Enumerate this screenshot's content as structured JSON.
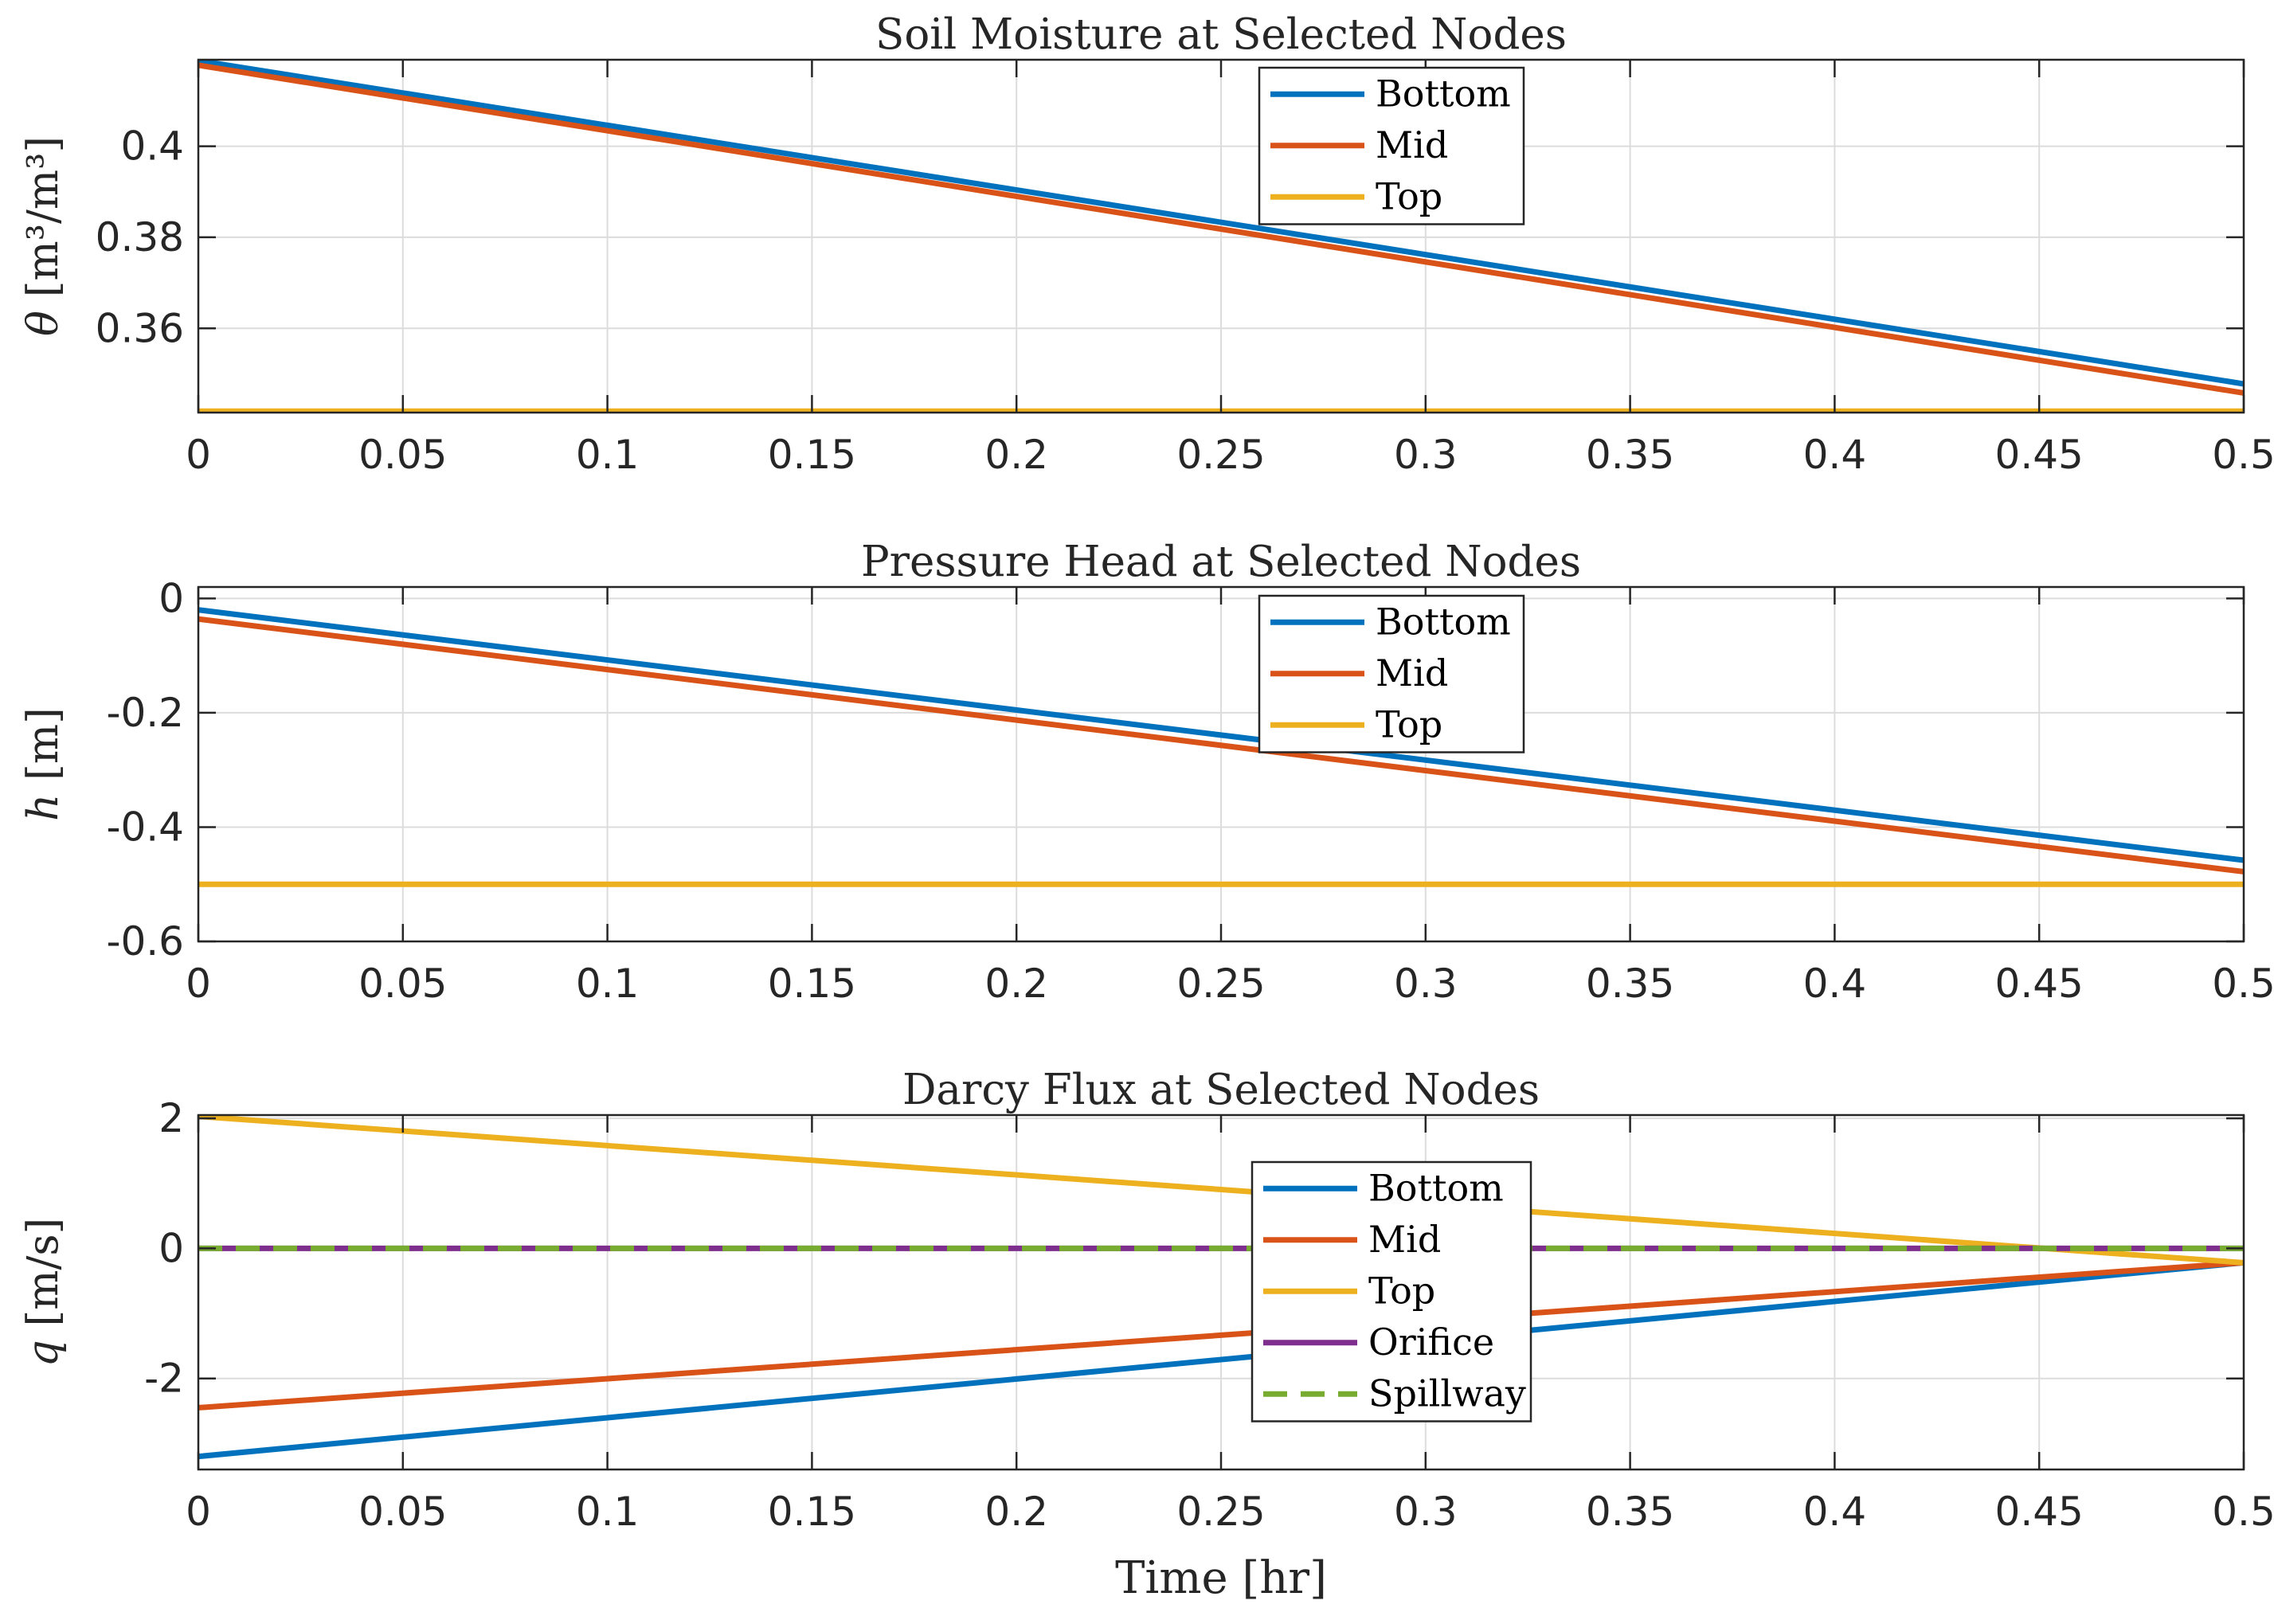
{
  "chart_data": [
    {
      "type": "line",
      "title": "Soil Moisture at Selected Nodes",
      "ylabel": "θ [m³/m³]",
      "ylabel_parts": {
        "symbol": "θ",
        "unit": "[m³/m³]"
      },
      "xlabel": "",
      "xlim": [
        0,
        0.5
      ],
      "ylim": [
        0.3415,
        0.419
      ],
      "xticks": [
        0,
        0.05,
        0.1,
        0.15,
        0.2,
        0.25,
        0.3,
        0.35,
        0.4,
        0.45,
        0.5
      ],
      "xtick_labels": [
        "0",
        "0.05",
        "0.1",
        "0.15",
        "0.2",
        "0.25",
        "0.3",
        "0.35",
        "0.4",
        "0.45",
        "0.5"
      ],
      "yticks": [
        0.36,
        0.38,
        0.4
      ],
      "ytick_labels": [
        "0.36",
        "0.38",
        "0.4"
      ],
      "grid": true,
      "legend_placement": "top-center",
      "series": [
        {
          "name": "Bottom",
          "color": "#0072BD",
          "dash": "solid",
          "x": [
            0,
            0.5
          ],
          "y": [
            0.4188,
            0.3478
          ]
        },
        {
          "name": "Mid",
          "color": "#D95319",
          "dash": "solid",
          "x": [
            0,
            0.5
          ],
          "y": [
            0.4178,
            0.3458
          ]
        },
        {
          "name": "Top",
          "color": "#EDB120",
          "dash": "solid",
          "x": [
            0,
            0.5
          ],
          "y": [
            0.3418,
            0.3418
          ]
        }
      ]
    },
    {
      "type": "line",
      "title": "Pressure Head at Selected Nodes",
      "ylabel": "h [m]",
      "ylabel_parts": {
        "symbol": "h",
        "unit": "[m]"
      },
      "xlabel": "",
      "xlim": [
        0,
        0.5
      ],
      "ylim": [
        -0.6,
        0.02
      ],
      "xticks": [
        0,
        0.05,
        0.1,
        0.15,
        0.2,
        0.25,
        0.3,
        0.35,
        0.4,
        0.45,
        0.5
      ],
      "xtick_labels": [
        "0",
        "0.05",
        "0.1",
        "0.15",
        "0.2",
        "0.25",
        "0.3",
        "0.35",
        "0.4",
        "0.45",
        "0.5"
      ],
      "yticks": [
        -0.6,
        -0.4,
        -0.2,
        0
      ],
      "ytick_labels": [
        "-0.6",
        "-0.4",
        "-0.2",
        "0"
      ],
      "grid": true,
      "legend_placement": "top-center",
      "series": [
        {
          "name": "Bottom",
          "color": "#0072BD",
          "dash": "solid",
          "x": [
            0,
            0.5
          ],
          "y": [
            -0.02,
            -0.458
          ]
        },
        {
          "name": "Mid",
          "color": "#D95319",
          "dash": "solid",
          "x": [
            0,
            0.5
          ],
          "y": [
            -0.036,
            -0.478
          ]
        },
        {
          "name": "Top",
          "color": "#EDB120",
          "dash": "solid",
          "x": [
            0,
            0.5
          ],
          "y": [
            -0.5,
            -0.5
          ]
        }
      ]
    },
    {
      "type": "line",
      "title": "Darcy Flux at Selected Nodes",
      "ylabel": "q [m/s]",
      "ylabel_parts": {
        "symbol": "q",
        "unit": "[m/s]"
      },
      "xlabel": "Time [hr]",
      "xlim": [
        0,
        0.5
      ],
      "ylim": [
        -3.4,
        2.05
      ],
      "xticks": [
        0,
        0.05,
        0.1,
        0.15,
        0.2,
        0.25,
        0.3,
        0.35,
        0.4,
        0.45,
        0.5
      ],
      "xtick_labels": [
        "0",
        "0.05",
        "0.1",
        "0.15",
        "0.2",
        "0.25",
        "0.3",
        "0.35",
        "0.4",
        "0.45",
        "0.5"
      ],
      "yticks": [
        -2,
        0,
        2
      ],
      "ytick_labels": [
        "-2",
        "0",
        "2"
      ],
      "grid": true,
      "legend_placement": "center",
      "series": [
        {
          "name": "Bottom",
          "color": "#0072BD",
          "dash": "solid",
          "x": [
            0,
            0.5
          ],
          "y": [
            -3.2,
            -0.22
          ]
        },
        {
          "name": "Mid",
          "color": "#D95319",
          "dash": "solid",
          "x": [
            0,
            0.5
          ],
          "y": [
            -2.45,
            -0.22
          ]
        },
        {
          "name": "Top",
          "color": "#EDB120",
          "dash": "solid",
          "x": [
            0,
            0.5
          ],
          "y": [
            2.03,
            -0.22
          ]
        },
        {
          "name": "Orifice",
          "color": "#7E2F8E",
          "dash": "solid",
          "x": [
            0,
            0.5
          ],
          "y": [
            0,
            0
          ]
        },
        {
          "name": "Spillway",
          "color": "#77AC30",
          "dash": "dashed",
          "x": [
            0,
            0.5
          ],
          "y": [
            0,
            0
          ]
        }
      ]
    }
  ]
}
